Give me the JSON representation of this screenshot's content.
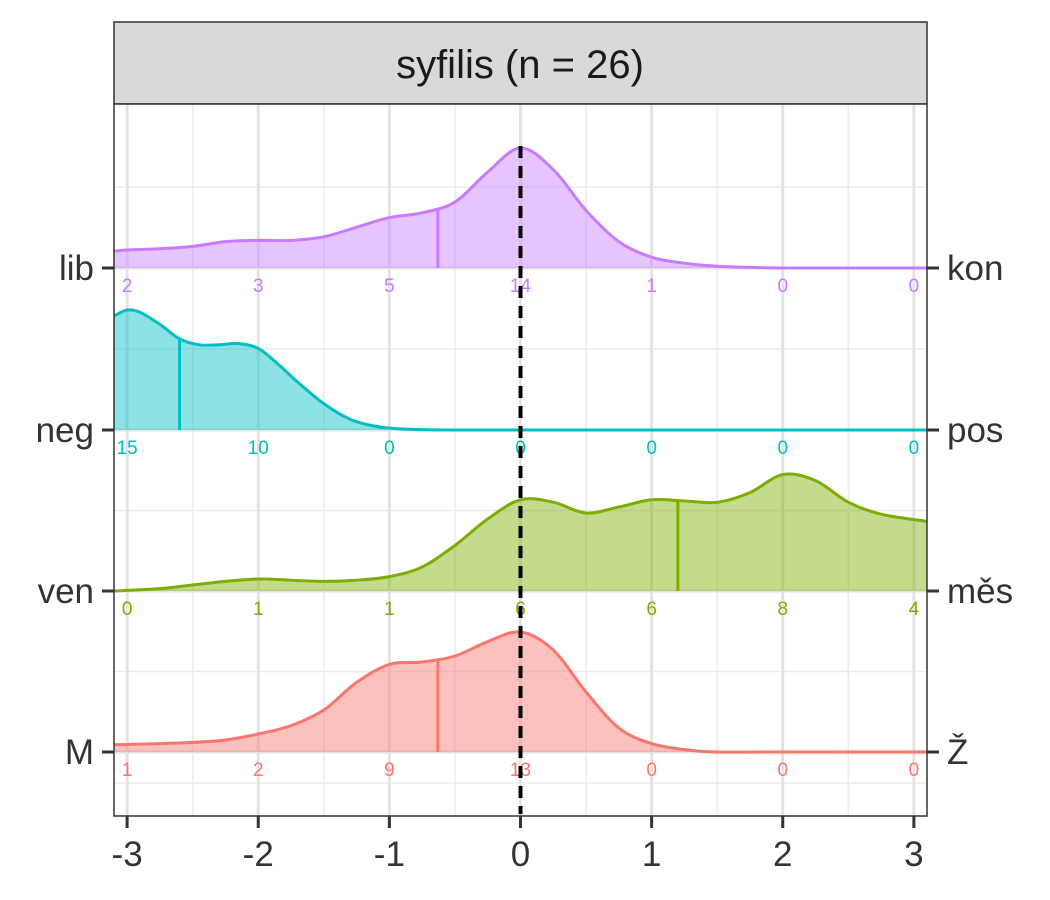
{
  "chart_data": {
    "type": "area",
    "title": "syfilis (n = 26)",
    "xlabel": "",
    "ylabel": "",
    "xlim": [
      -3.1,
      3.1
    ],
    "x_ticks": [
      -3,
      -2,
      -1,
      0,
      1,
      2,
      3
    ],
    "x_tick_labels": [
      "-3",
      "-2",
      "-1",
      "0",
      "1",
      "2",
      "3"
    ],
    "grid": true,
    "reference_line": {
      "x": 0,
      "style": "dashed",
      "color": "#000000"
    },
    "count_positions": [
      -3,
      -2,
      -1,
      0,
      1,
      2,
      3
    ],
    "series": [
      {
        "left_label": "lib",
        "right_label": "kon",
        "color": "#C77CFF",
        "median": -0.63,
        "counts": [
          "2",
          "3",
          "5",
          "14",
          "1",
          "0",
          "0"
        ],
        "density_x": [
          -3.1,
          -3.0,
          -2.75,
          -2.5,
          -2.25,
          -2.0,
          -1.75,
          -1.5,
          -1.25,
          -1.0,
          -0.75,
          -0.5,
          -0.25,
          0.0,
          0.25,
          0.5,
          0.75,
          1.0,
          1.25,
          1.5,
          1.75,
          2.0,
          2.5,
          3.1
        ],
        "density_y": [
          0.14,
          0.15,
          0.16,
          0.18,
          0.22,
          0.23,
          0.23,
          0.26,
          0.34,
          0.42,
          0.46,
          0.55,
          0.8,
          1.0,
          0.82,
          0.48,
          0.22,
          0.09,
          0.04,
          0.015,
          0.005,
          0.0,
          0.0,
          0.0
        ]
      },
      {
        "left_label": "neg",
        "right_label": "pos",
        "color": "#00BFC4",
        "median": -2.6,
        "counts": [
          "15",
          "10",
          "0",
          "0",
          "0",
          "0",
          "0"
        ],
        "density_x": [
          -3.1,
          -3.0,
          -2.9,
          -2.75,
          -2.6,
          -2.45,
          -2.3,
          -2.15,
          -2.0,
          -1.85,
          -1.7,
          -1.5,
          -1.3,
          -1.1,
          -0.9,
          -0.7,
          -0.5,
          -0.3,
          0.0,
          3.1
        ],
        "density_y": [
          0.95,
          1.0,
          0.98,
          0.88,
          0.76,
          0.71,
          0.71,
          0.72,
          0.68,
          0.55,
          0.4,
          0.22,
          0.09,
          0.03,
          0.008,
          0.002,
          0.0,
          0.0,
          0.0,
          0.0
        ]
      },
      {
        "left_label": "ven",
        "right_label": "měs",
        "color": "#7CAE00",
        "median": 1.2,
        "counts": [
          "0",
          "1",
          "1",
          "6",
          "6",
          "8",
          "4"
        ],
        "density_x": [
          -3.1,
          -2.75,
          -2.5,
          -2.25,
          -2.0,
          -1.75,
          -1.5,
          -1.25,
          -1.0,
          -0.75,
          -0.5,
          -0.25,
          0.0,
          0.25,
          0.5,
          0.75,
          1.0,
          1.25,
          1.5,
          1.75,
          2.0,
          2.25,
          2.5,
          2.75,
          3.1
        ],
        "density_y": [
          0.0,
          0.02,
          0.05,
          0.08,
          0.1,
          0.09,
          0.08,
          0.09,
          0.12,
          0.2,
          0.38,
          0.6,
          0.76,
          0.74,
          0.65,
          0.7,
          0.76,
          0.75,
          0.74,
          0.82,
          0.97,
          0.92,
          0.74,
          0.64,
          0.58
        ]
      },
      {
        "left_label": "M",
        "right_label": "Ž",
        "color": "#F8766D",
        "median": -0.63,
        "counts": [
          "1",
          "2",
          "9",
          "13",
          "0",
          "0",
          "0"
        ],
        "density_x": [
          -3.1,
          -2.75,
          -2.5,
          -2.25,
          -2.0,
          -1.75,
          -1.5,
          -1.25,
          -1.0,
          -0.75,
          -0.5,
          -0.25,
          0.0,
          0.25,
          0.5,
          0.75,
          1.0,
          1.25,
          1.5,
          2.0,
          3.1
        ],
        "density_y": [
          0.06,
          0.07,
          0.08,
          0.1,
          0.15,
          0.22,
          0.35,
          0.58,
          0.73,
          0.75,
          0.8,
          0.92,
          1.0,
          0.85,
          0.5,
          0.2,
          0.07,
          0.02,
          0.0,
          0.0,
          0.0
        ]
      }
    ]
  }
}
